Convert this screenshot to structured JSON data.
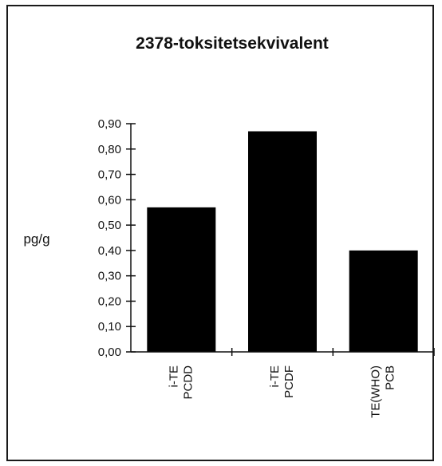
{
  "chart_data": {
    "type": "bar",
    "title": "2378-toksitetsekvivalent",
    "ylabel": "pg/g",
    "xlabel": "",
    "ylim": [
      0,
      0.9
    ],
    "yticks": [
      "0,00",
      "0,10",
      "0,20",
      "0,30",
      "0,40",
      "0,50",
      "0,60",
      "0,70",
      "0,80",
      "0,90"
    ],
    "categories": [
      {
        "line1": "i-TE",
        "line2": "PCDD"
      },
      {
        "line1": "i-TE",
        "line2": "PCDF"
      },
      {
        "line1": "TE(WHO)",
        "line2": "PCB"
      }
    ],
    "values": [
      0.57,
      0.87,
      0.4
    ],
    "bar_color": "#000000",
    "grid": false,
    "legend": "none"
  }
}
